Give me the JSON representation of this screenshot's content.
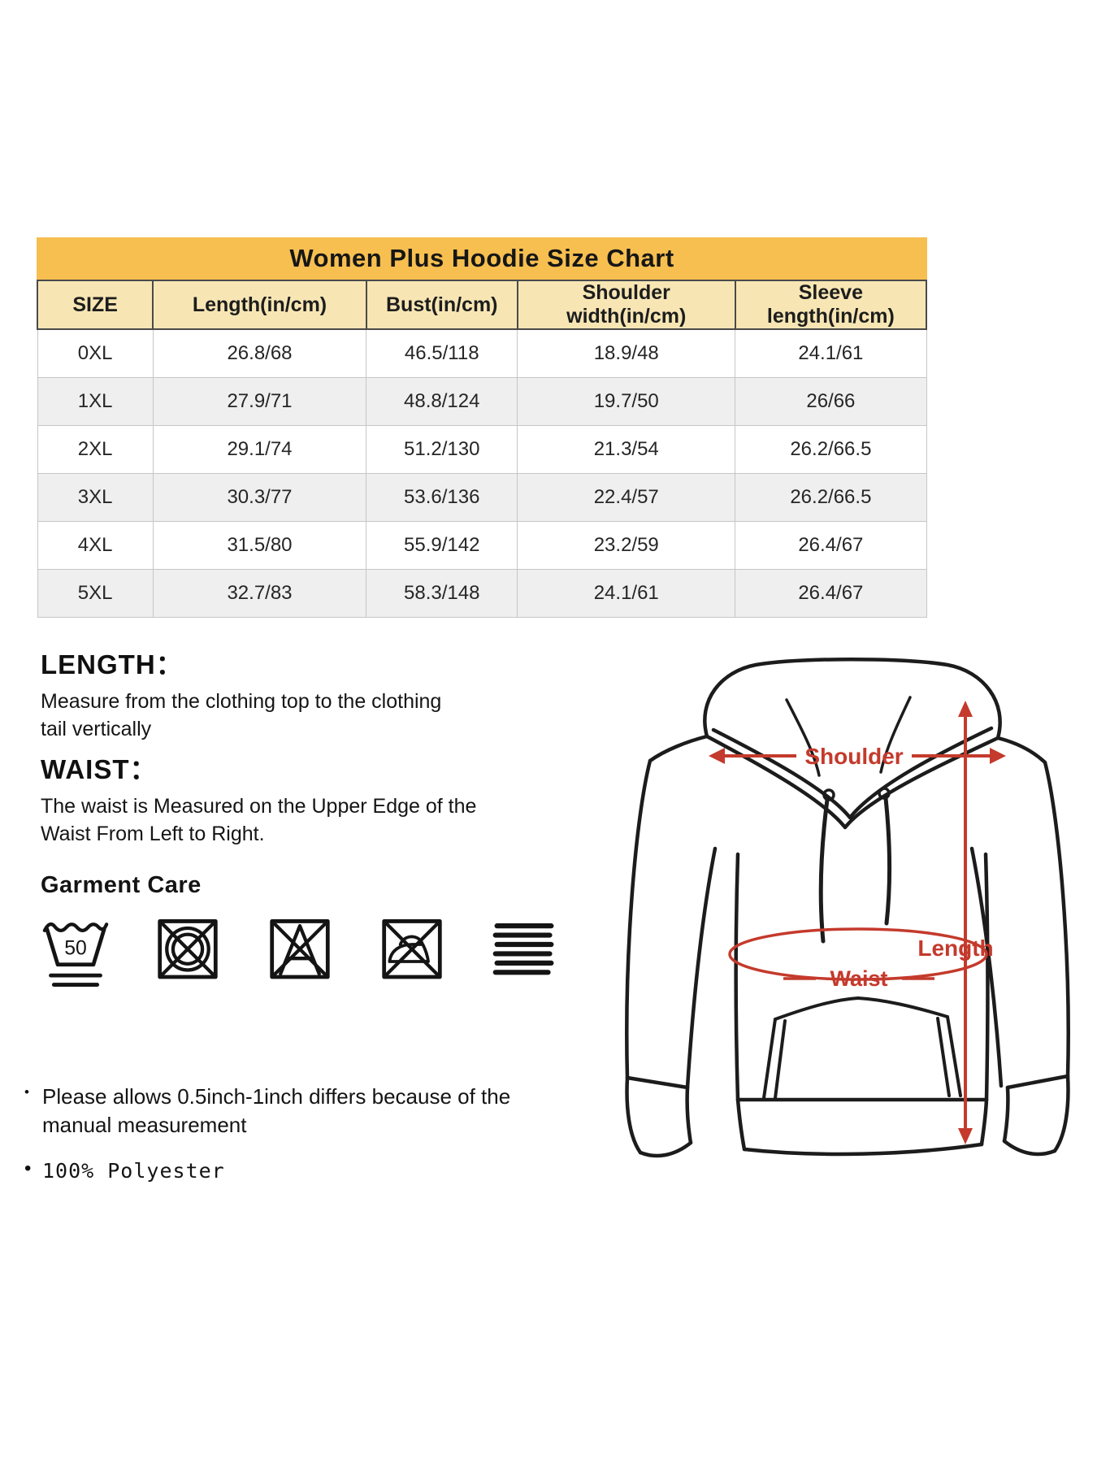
{
  "size_chart": {
    "title": "Women Plus Hoodie Size Chart",
    "columns": [
      "SIZE",
      "Length(in/cm)",
      "Bust(in/cm)",
      "Shoulder width(in/cm)",
      "Sleeve length(in/cm)"
    ],
    "rows": [
      [
        "0XL",
        "26.8/68",
        "46.5/118",
        "18.9/48",
        "24.1/61"
      ],
      [
        "1XL",
        "27.9/71",
        "48.8/124",
        "19.7/50",
        "26/66"
      ],
      [
        "2XL",
        "29.1/74",
        "51.2/130",
        "21.3/54",
        "26.2/66.5"
      ],
      [
        "3XL",
        "30.3/77",
        "53.6/136",
        "22.4/57",
        "26.2/66.5"
      ],
      [
        "4XL",
        "31.5/80",
        "55.9/142",
        "23.2/59",
        "26.4/67"
      ],
      [
        "5XL",
        "32.7/83",
        "58.3/148",
        "24.1/61",
        "26.4/67"
      ]
    ]
  },
  "measure_guide": {
    "length_heading": "LENGTH：",
    "length_body": "Measure from the clothing top to the clothing\ntail vertically",
    "waist_heading": "WAIST：",
    "waist_body": "The waist is Measured on the Upper Edge of the\nWaist From Left to Right."
  },
  "garment_care": {
    "heading": "Garment Care",
    "wash_temp": "50",
    "icons": [
      "wash-50",
      "do-not-tumble-dry",
      "do-not-bleach",
      "do-not-iron",
      "dry-flat"
    ]
  },
  "notes": [
    "Please allows 0.5inch-1inch differs because of the\nmanual measurement",
    "100% Polyester"
  ],
  "note_bullet": "•",
  "diagram": {
    "shoulder_label": "Shoulder",
    "length_label": "Length",
    "waist_label": "Waist"
  },
  "colors": {
    "title_bar": "#f6bf50",
    "header_row": "#f7e6b4",
    "row_alt": "#efefef",
    "annotation_red": "#c43a2c",
    "line_black": "#1c1c1c"
  }
}
